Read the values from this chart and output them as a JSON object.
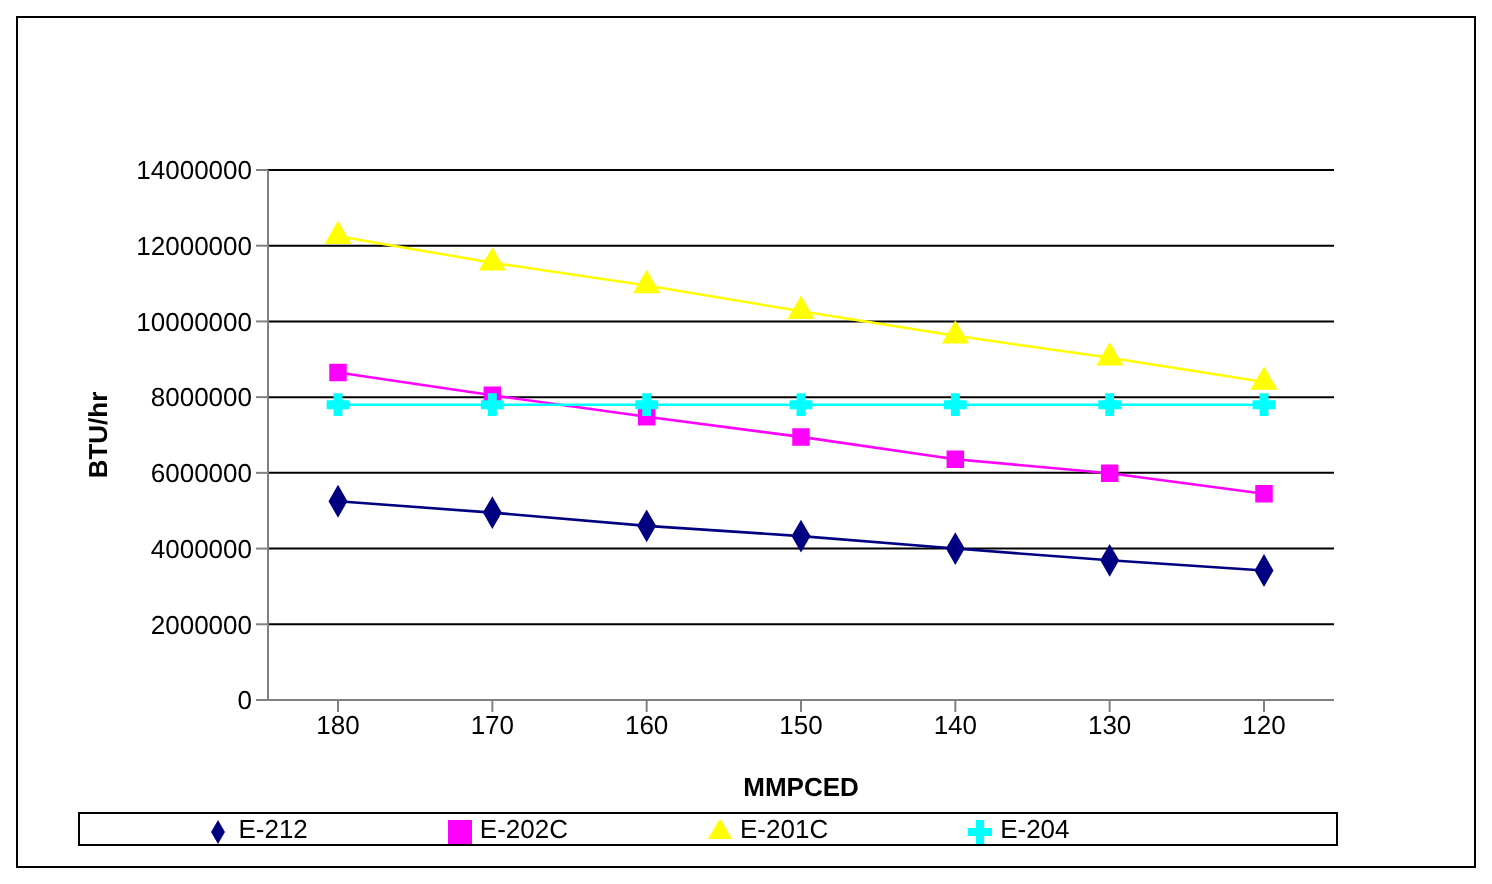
{
  "chart_data": {
    "type": "line",
    "xlabel": "MMPCED",
    "ylabel": "BTU/hr",
    "categories": [
      "180",
      "170",
      "160",
      "150",
      "140",
      "130",
      "120"
    ],
    "ylim": [
      0,
      14000000
    ],
    "yticks": [
      0,
      2000000,
      4000000,
      6000000,
      8000000,
      10000000,
      12000000,
      14000000
    ],
    "grid": "y",
    "legend": "bottom",
    "line_style": "solid",
    "series": [
      {
        "name": "E-212",
        "color": "#000080",
        "marker": "diamond",
        "values": [
          5250000,
          4950000,
          4600000,
          4330000,
          4000000,
          3690000,
          3420000
        ]
      },
      {
        "name": "E-202C",
        "color": "#ff00ff",
        "marker": "square",
        "values": [
          8650000,
          8050000,
          7480000,
          6950000,
          6360000,
          5990000,
          5450000
        ]
      },
      {
        "name": "E-201C",
        "color": "#ffff00",
        "marker": "triangle",
        "values": [
          12250000,
          11550000,
          10950000,
          10270000,
          9620000,
          9040000,
          8400000
        ]
      },
      {
        "name": "E-204",
        "color": "#00ffff",
        "marker": "cross",
        "values": [
          7800000,
          7800000,
          7800000,
          7800000,
          7800000,
          7800000,
          7800000
        ]
      }
    ]
  }
}
